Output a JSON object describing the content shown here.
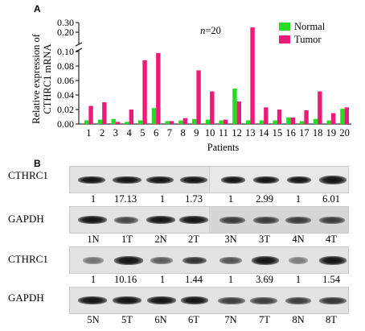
{
  "panel_a": {
    "letter": "A",
    "n_label": "n=20",
    "legend_normal": "Normal",
    "legend_tumor": "Tumor",
    "colors": {
      "normal": "#22dd22",
      "tumor": "#ee1a7a"
    }
  },
  "panel_b": {
    "letter": "B",
    "blot1": {
      "target_label": "CTHRC1",
      "control_label": "GAPDH",
      "ratios": [
        "1",
        "17.13",
        "1",
        "1.73",
        "1",
        "2.99",
        "1",
        "6.01"
      ],
      "lanes": [
        "1N",
        "1T",
        "2N",
        "2T",
        "3N",
        "3T",
        "4N",
        "4T"
      ]
    },
    "blot2": {
      "target_label": "CTHRC1",
      "control_label": "GAPDH",
      "ratios": [
        "1",
        "10.16",
        "1",
        "1.44",
        "1",
        "3.69",
        "1",
        "1.54"
      ],
      "lanes": [
        "5N",
        "5T",
        "6N",
        "6T",
        "7N",
        "7T",
        "8N",
        "8T"
      ]
    }
  },
  "chart_data": {
    "type": "bar",
    "ylabel": "Relative expression of CTHRC1 mRNA",
    "xlabel": "Patients",
    "y_axis_break": true,
    "y_ticks_lower": [
      "0.00",
      "0.02",
      "0.04",
      "0.06",
      "0.08",
      "0.10"
    ],
    "y_ticks_upper": [
      "0.20",
      "0.30"
    ],
    "ylim_lower": [
      0,
      0.1
    ],
    "ylim_upper": [
      0.1,
      0.3
    ],
    "categories": [
      "1",
      "2",
      "3",
      "4",
      "5",
      "6",
      "7",
      "8",
      "9",
      "10",
      "11",
      "12",
      "13",
      "14",
      "15",
      "16",
      "17",
      "18",
      "19",
      "20"
    ],
    "series": [
      {
        "name": "Normal",
        "values": [
          0.005,
          0.006,
          0.007,
          0.003,
          0.005,
          0.022,
          0.004,
          0.005,
          0.007,
          0.006,
          0.005,
          0.049,
          0.005,
          0.005,
          0.005,
          0.009,
          0.004,
          0.007,
          0.005,
          0.021
        ]
      },
      {
        "name": "Tumor",
        "values": [
          0.025,
          0.03,
          0.003,
          0.02,
          0.088,
          0.098,
          0.004,
          0.008,
          0.074,
          0.045,
          0.006,
          0.031,
          0.25,
          0.023,
          0.02,
          0.009,
          0.019,
          0.045,
          0.015,
          0.023
        ]
      }
    ]
  }
}
